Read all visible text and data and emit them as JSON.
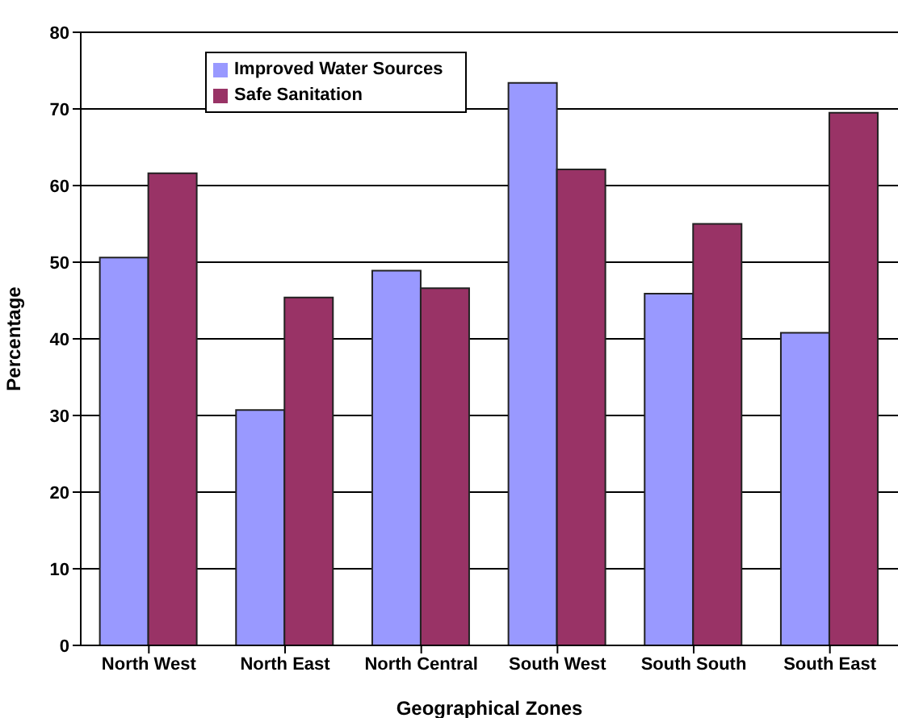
{
  "chart_data": {
    "type": "bar",
    "xlabel": "Geographical Zones",
    "ylabel": "Percentage",
    "categories": [
      "North West",
      "North East",
      "North Central",
      "South West",
      "South South",
      "South East"
    ],
    "series": [
      {
        "name": "Improved Water Sources",
        "color": "#9999ff",
        "values": [
          50.6,
          30.7,
          48.9,
          73.4,
          45.9,
          40.8
        ]
      },
      {
        "name": "Safe Sanitation",
        "color": "#993366",
        "values": [
          61.6,
          45.4,
          46.6,
          62.1,
          55.0,
          69.5
        ]
      }
    ],
    "ylim": [
      0,
      80
    ],
    "yticks": [
      0,
      10,
      20,
      30,
      40,
      50,
      60,
      70,
      80
    ],
    "grid": "y",
    "legend": "top left"
  }
}
